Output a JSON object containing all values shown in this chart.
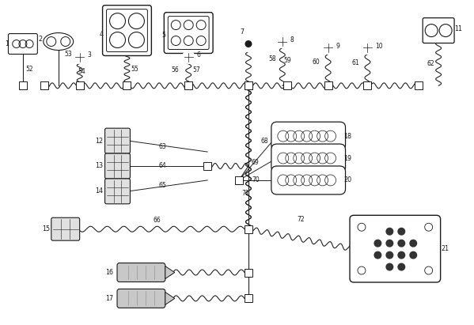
{
  "bg_color": "#ffffff",
  "line_color": "#1a1a1a",
  "fig_w": 5.99,
  "fig_h": 4.11,
  "dpi": 100
}
